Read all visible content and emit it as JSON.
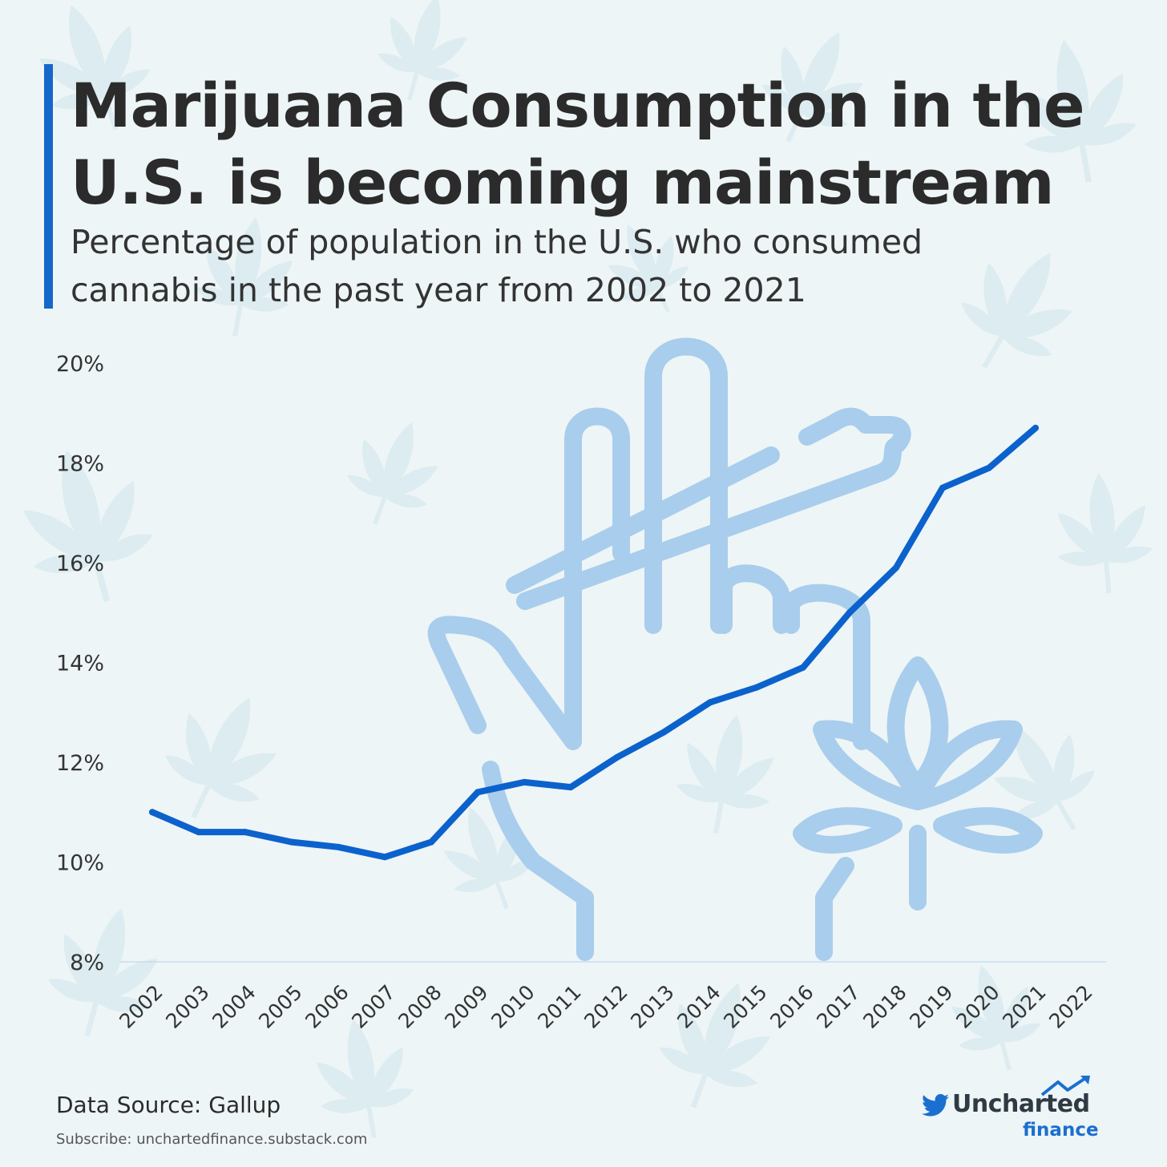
{
  "title": "Marijuana Consumption in the U.S. is becoming mainstream",
  "subtitle": "Percentage of population in the U.S. who consumed cannabis in the past year from 2002 to 2021",
  "source": "Data Source: Gallup",
  "subscribe": "Subscribe: unchartedfinance.substack.com",
  "brand": {
    "name": "Uncharted",
    "sub": "finance"
  },
  "icons": [
    "cannabis-leaf-icon",
    "hand-holding-joint-icon",
    "twitter-bird-icon",
    "trend-arrow-icon"
  ],
  "colors": {
    "line": "#0b62cc",
    "accent": "#1567c9",
    "icon": "#a9cdec",
    "leaf_pattern": "#cfe6ee",
    "text": "#2b2b2b"
  },
  "chart_data": {
    "type": "line",
    "title": "",
    "xlabel": "",
    "ylabel": "",
    "x": [
      "2002",
      "2003",
      "2004",
      "2005",
      "2006",
      "2007",
      "2008",
      "2009",
      "2010",
      "2011",
      "2012",
      "2013",
      "2014",
      "2015",
      "2016",
      "2017",
      "2018",
      "2019",
      "2020",
      "2021"
    ],
    "x_ticks": [
      "2002",
      "2003",
      "2004",
      "2005",
      "2006",
      "2007",
      "2008",
      "2009",
      "2010",
      "2011",
      "2012",
      "2013",
      "2014",
      "2015",
      "2016",
      "2017",
      "2018",
      "2019",
      "2020",
      "2021",
      "2022"
    ],
    "series": [
      {
        "values": [
          11.0,
          10.6,
          10.6,
          10.4,
          10.3,
          10.1,
          10.4,
          11.4,
          11.6,
          11.5,
          12.1,
          12.6,
          13.2,
          13.5,
          13.9,
          15.0,
          15.9,
          17.5,
          17.9,
          18.7
        ]
      }
    ],
    "ylim": [
      8,
      20
    ],
    "y_ticks": [
      "8%",
      "10%",
      "12%",
      "14%",
      "16%",
      "18%",
      "20%"
    ],
    "grid": false
  }
}
